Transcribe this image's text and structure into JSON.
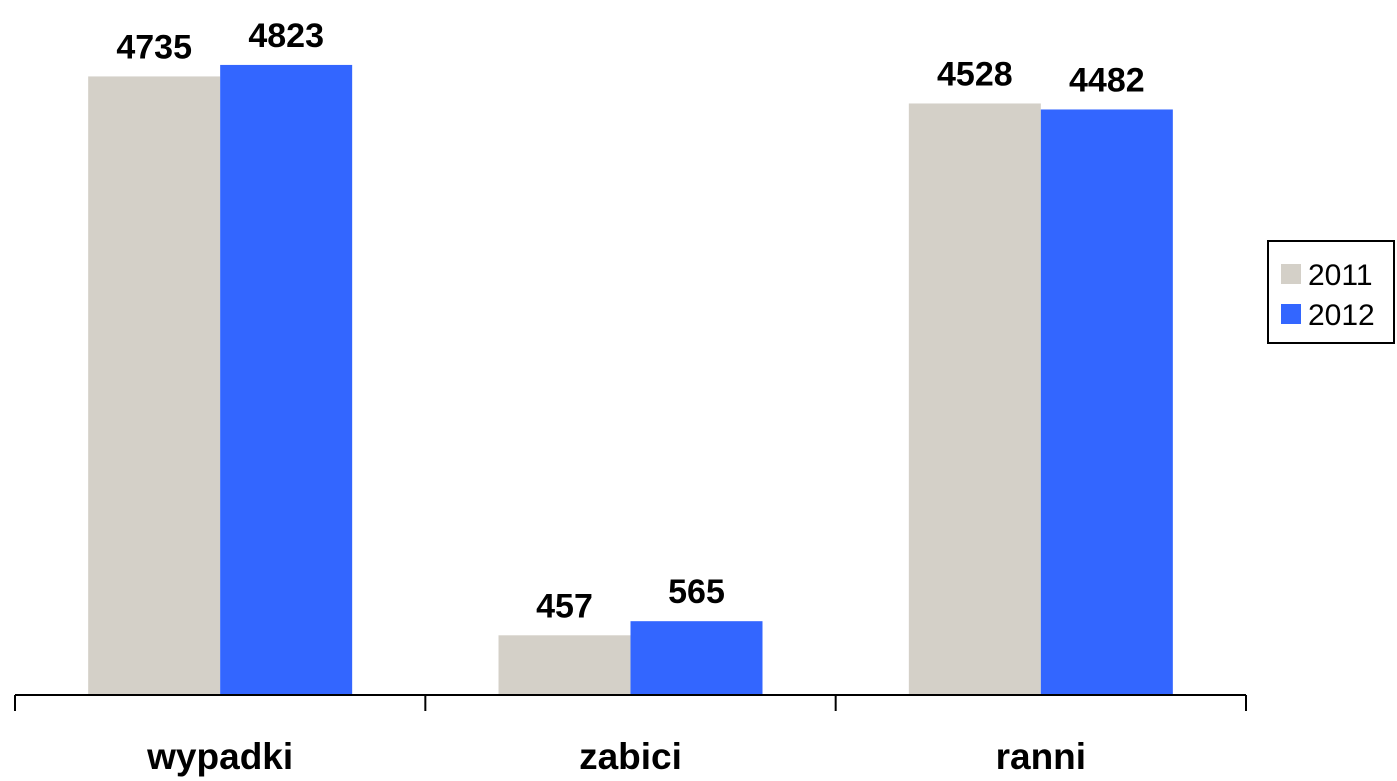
{
  "chart_data": {
    "type": "bar",
    "title": "",
    "xlabel": "",
    "ylabel": "",
    "categories": [
      "wypadki",
      "zabici",
      "ranni"
    ],
    "series": [
      {
        "name": "2011",
        "values": [
          4735,
          457,
          4528
        ],
        "color": "#d4d0c8"
      },
      {
        "name": "2012",
        "values": [
          4823,
          565,
          4482
        ],
        "color": "#3366ff"
      }
    ],
    "ylim": [
      0,
      5320
    ],
    "grid": false,
    "legend": "right",
    "data_labels": true
  }
}
